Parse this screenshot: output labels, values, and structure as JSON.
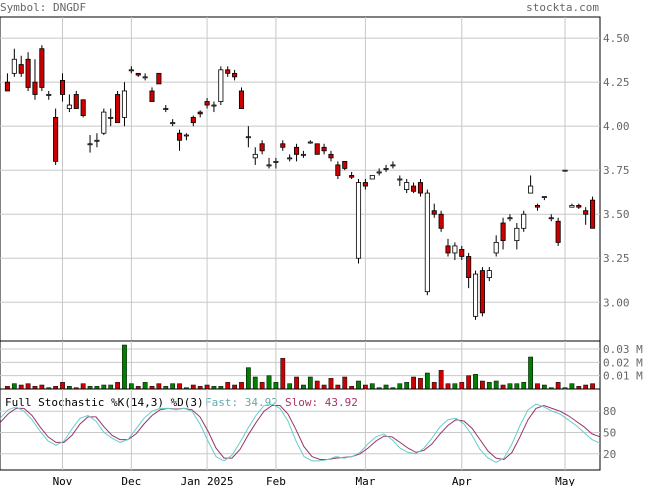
{
  "header": {
    "symbol_label": "Symbol: DNGDF",
    "brand": "stockta.com"
  },
  "colors": {
    "up": "#ffffff",
    "down": "#cc0000",
    "vol_up": "#008000",
    "vol_down": "#cc0000",
    "grid": "#c8c8c8",
    "fast": "#66cccc",
    "slow": "#993366",
    "title_text": "#000000",
    "fast_text": "#66aaaa",
    "slow_text": "#aa3366"
  },
  "chart_data": {
    "type": "candlestick",
    "price_axis": {
      "ticks": [
        3.0,
        3.25,
        3.5,
        3.75,
        4.0,
        4.25,
        4.5
      ],
      "tick_labels": [
        "3.00",
        "3.25",
        "3.50",
        "3.75",
        "4.00",
        "4.25",
        "4.50"
      ],
      "ylim": [
        2.78,
        4.62
      ]
    },
    "volume_axis": {
      "ticks": [
        0.01,
        0.02,
        0.03
      ],
      "tick_labels": [
        "0.01 M",
        "0.02 M",
        "0.03 M"
      ],
      "ylim": [
        0,
        0.036
      ]
    },
    "stochastic": {
      "title": "Full Stochastic %K(14,3) %D(3)",
      "fast_label": "Fast: 34.92",
      "slow_label": "Slow: 43.92",
      "ticks": [
        20,
        50,
        80
      ],
      "tick_labels": [
        "20",
        "50",
        "80"
      ],
      "ylim": [
        0,
        100
      ],
      "fast": [
        70,
        82,
        86,
        80,
        68,
        52,
        38,
        32,
        38,
        55,
        70,
        74,
        66,
        50,
        42,
        36,
        40,
        55,
        70,
        80,
        84,
        84,
        82,
        84,
        80,
        62,
        38,
        16,
        10,
        18,
        36,
        56,
        74,
        88,
        90,
        84,
        66,
        38,
        16,
        10,
        10,
        12,
        16,
        14,
        16,
        22,
        34,
        44,
        48,
        40,
        28,
        22,
        20,
        28,
        42,
        58,
        68,
        70,
        62,
        46,
        26,
        14,
        8,
        14,
        34,
        60,
        82,
        90,
        86,
        80,
        76,
        68,
        60,
        50,
        40,
        35
      ],
      "slow": [
        64,
        76,
        84,
        84,
        74,
        58,
        44,
        36,
        36,
        46,
        62,
        72,
        72,
        58,
        46,
        40,
        40,
        48,
        62,
        74,
        82,
        84,
        83,
        84,
        82,
        72,
        52,
        28,
        14,
        14,
        26,
        46,
        64,
        80,
        88,
        88,
        76,
        54,
        30,
        16,
        12,
        12,
        14,
        15,
        16,
        20,
        28,
        38,
        45,
        44,
        36,
        28,
        22,
        25,
        34,
        48,
        60,
        68,
        66,
        56,
        40,
        24,
        14,
        12,
        22,
        44,
        68,
        84,
        88,
        84,
        80,
        74,
        66,
        58,
        48,
        44
      ]
    },
    "x_labels": [
      {
        "index": 8,
        "label": "Nov"
      },
      {
        "index": 18,
        "label": "Dec"
      },
      {
        "index": 29,
        "label": "Jan 2025"
      },
      {
        "index": 39,
        "label": "Feb"
      },
      {
        "index": 52,
        "label": "Mar"
      },
      {
        "index": 66,
        "label": "Apr"
      },
      {
        "index": 81,
        "label": "May"
      }
    ],
    "candles": [
      [
        4.25,
        4.3,
        4.2,
        4.2,
        0.002
      ],
      [
        4.3,
        4.44,
        4.28,
        4.38,
        0.004
      ],
      [
        4.35,
        4.4,
        4.28,
        4.3,
        0.003
      ],
      [
        4.38,
        4.42,
        4.2,
        4.22,
        0.004
      ],
      [
        4.25,
        4.38,
        4.15,
        4.18,
        0.002
      ],
      [
        4.44,
        4.46,
        4.2,
        4.22,
        0.003
      ],
      [
        4.18,
        4.2,
        4.15,
        4.18,
        0.001
      ],
      [
        4.05,
        4.1,
        3.78,
        3.8,
        0.002
      ],
      [
        4.26,
        4.3,
        4.14,
        4.18,
        0.005
      ],
      [
        4.1,
        4.18,
        4.08,
        4.12,
        0.002
      ],
      [
        4.18,
        4.2,
        4.1,
        4.1,
        0.001
      ],
      [
        4.15,
        4.15,
        4.05,
        4.06,
        0.004
      ],
      [
        3.9,
        3.95,
        3.85,
        3.9,
        0.002
      ],
      [
        3.92,
        3.96,
        3.88,
        3.92,
        0.002
      ],
      [
        3.96,
        4.1,
        3.95,
        4.08,
        0.003
      ],
      [
        4.05,
        4.1,
        4.0,
        4.05,
        0.003
      ],
      [
        4.18,
        4.2,
        4.02,
        4.02,
        0.005
      ],
      [
        4.05,
        4.25,
        4.0,
        4.2,
        0.033
      ],
      [
        4.32,
        4.34,
        4.3,
        4.32,
        0.004
      ],
      [
        4.3,
        4.3,
        4.28,
        4.29,
        0.002
      ],
      [
        4.28,
        4.3,
        4.26,
        4.28,
        0.005
      ],
      [
        4.2,
        4.22,
        4.14,
        4.14,
        0.002
      ],
      [
        4.3,
        4.3,
        4.24,
        4.24,
        0.004
      ],
      [
        4.1,
        4.12,
        4.08,
        4.1,
        0.002
      ],
      [
        4.02,
        4.04,
        4.0,
        4.02,
        0.004
      ],
      [
        3.96,
        3.98,
        3.86,
        3.92,
        0.004
      ],
      [
        3.95,
        3.96,
        3.92,
        3.95,
        0.001
      ],
      [
        4.05,
        4.06,
        4.0,
        4.02,
        0.003
      ],
      [
        4.08,
        4.09,
        4.05,
        4.07,
        0.002
      ],
      [
        4.14,
        4.16,
        4.1,
        4.12,
        0.003
      ],
      [
        4.12,
        4.14,
        4.08,
        4.12,
        0.002
      ],
      [
        4.14,
        4.34,
        4.12,
        4.32,
        0.002
      ],
      [
        4.32,
        4.34,
        4.28,
        4.3,
        0.005
      ],
      [
        4.3,
        4.32,
        4.26,
        4.28,
        0.003
      ],
      [
        4.2,
        4.22,
        4.1,
        4.1,
        0.005
      ],
      [
        3.94,
        4.0,
        3.88,
        3.94,
        0.016
      ],
      [
        3.82,
        3.88,
        3.78,
        3.84,
        0.009
      ],
      [
        3.9,
        3.92,
        3.84,
        3.86,
        0.005
      ],
      [
        3.78,
        3.82,
        3.76,
        3.78,
        0.01
      ],
      [
        3.8,
        3.82,
        3.76,
        3.8,
        0.005
      ],
      [
        3.9,
        3.92,
        3.86,
        3.88,
        0.023
      ],
      [
        3.82,
        3.84,
        3.8,
        3.82,
        0.004
      ],
      [
        3.88,
        3.9,
        3.8,
        3.84,
        0.009
      ],
      [
        3.84,
        3.86,
        3.82,
        3.84,
        0.003
      ],
      [
        3.91,
        3.92,
        3.9,
        3.91,
        0.009
      ],
      [
        3.9,
        3.9,
        3.84,
        3.84,
        0.006
      ],
      [
        3.88,
        3.9,
        3.84,
        3.86,
        0.003
      ],
      [
        3.84,
        3.86,
        3.8,
        3.82,
        0.008
      ],
      [
        3.78,
        3.8,
        3.7,
        3.72,
        0.003
      ],
      [
        3.8,
        3.8,
        3.75,
        3.76,
        0.009
      ],
      [
        3.72,
        3.74,
        3.7,
        3.71,
        0.002
      ],
      [
        3.25,
        3.7,
        3.22,
        3.68,
        0.006
      ],
      [
        3.68,
        3.7,
        3.64,
        3.66,
        0.003
      ],
      [
        3.7,
        3.72,
        3.7,
        3.72,
        0.004
      ],
      [
        3.74,
        3.76,
        3.72,
        3.74,
        0.001
      ],
      [
        3.76,
        3.78,
        3.74,
        3.76,
        0.003
      ],
      [
        3.78,
        3.8,
        3.76,
        3.78,
        0.001
      ],
      [
        3.7,
        3.72,
        3.66,
        3.7,
        0.004
      ],
      [
        3.64,
        3.7,
        3.62,
        3.68,
        0.005
      ],
      [
        3.66,
        3.68,
        3.62,
        3.63,
        0.009
      ],
      [
        3.68,
        3.7,
        3.6,
        3.62,
        0.008
      ],
      [
        3.06,
        3.64,
        3.04,
        3.62,
        0.012
      ],
      [
        3.52,
        3.56,
        3.48,
        3.5,
        0.005
      ],
      [
        3.5,
        3.52,
        3.4,
        3.42,
        0.014
      ],
      [
        3.32,
        3.36,
        3.26,
        3.28,
        0.004
      ],
      [
        3.28,
        3.34,
        3.24,
        3.32,
        0.004
      ],
      [
        3.3,
        3.32,
        3.24,
        3.26,
        0.005
      ],
      [
        3.26,
        3.28,
        3.08,
        3.14,
        0.01
      ],
      [
        2.92,
        3.18,
        2.9,
        3.16,
        0.011
      ],
      [
        3.18,
        3.2,
        2.92,
        2.94,
        0.006
      ],
      [
        3.14,
        3.2,
        3.12,
        3.18,
        0.005
      ],
      [
        3.28,
        3.38,
        3.26,
        3.34,
        0.006
      ],
      [
        3.45,
        3.48,
        3.3,
        3.35,
        0.003
      ],
      [
        3.48,
        3.5,
        3.46,
        3.48,
        0.004
      ],
      [
        3.35,
        3.45,
        3.3,
        3.42,
        0.004
      ],
      [
        3.42,
        3.52,
        3.4,
        3.5,
        0.005
      ],
      [
        3.62,
        3.72,
        3.62,
        3.66,
        0.024
      ],
      [
        3.55,
        3.56,
        3.52,
        3.54,
        0.004
      ],
      [
        3.6,
        3.6,
        3.58,
        3.6,
        0.003
      ],
      [
        3.48,
        3.5,
        3.46,
        3.48,
        0.001
      ],
      [
        3.46,
        3.48,
        3.32,
        3.34,
        0.005
      ],
      [
        3.75,
        3.75,
        3.75,
        3.75,
        0.001
      ],
      [
        3.54,
        3.56,
        3.54,
        3.55,
        0.004
      ],
      [
        3.55,
        3.56,
        3.53,
        3.54,
        0.002
      ],
      [
        3.52,
        3.54,
        3.44,
        3.5,
        0.003
      ],
      [
        3.58,
        3.6,
        3.42,
        3.42,
        0.004
      ]
    ]
  }
}
